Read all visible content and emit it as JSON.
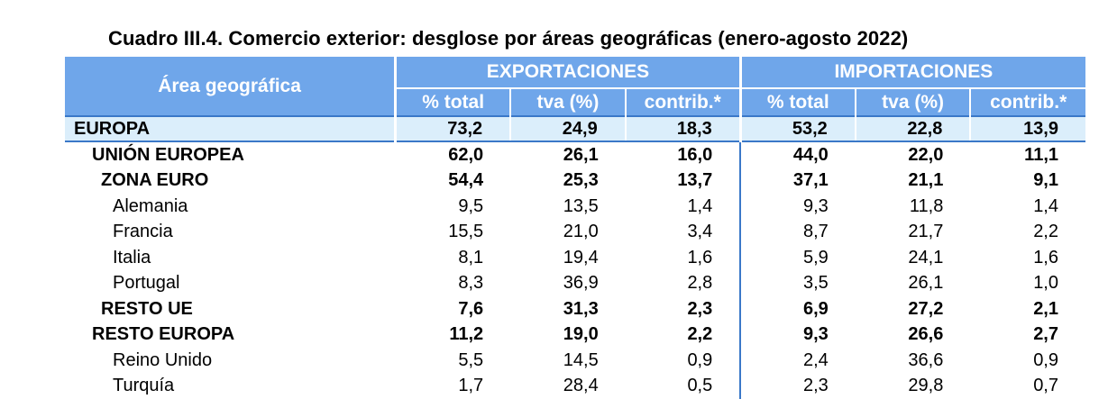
{
  "title": "Cuadro III.4. Comercio exterior: desglose por áreas geográficas (enero-agosto 2022)",
  "header": {
    "area": "Área geográfica",
    "exports": "EXPORTACIONES",
    "imports": "IMPORTACIONES",
    "sub": [
      "% total",
      "tva (%)",
      "contrib.*",
      "% total",
      "tva (%)",
      "contrib.*"
    ]
  },
  "rows": [
    {
      "label": "EUROPA",
      "values": [
        "73,2",
        "24,9",
        "18,3",
        "53,2",
        "22,8",
        "13,9"
      ]
    },
    {
      "label": "UNIÓN EUROPEA",
      "values": [
        "62,0",
        "26,1",
        "16,0",
        "44,0",
        "22,0",
        "11,1"
      ]
    },
    {
      "label": "ZONA EURO",
      "values": [
        "54,4",
        "25,3",
        "13,7",
        "37,1",
        "21,1",
        "9,1"
      ]
    },
    {
      "label": "Alemania",
      "values": [
        "9,5",
        "13,5",
        "1,4",
        "9,3",
        "11,8",
        "1,4"
      ]
    },
    {
      "label": "Francia",
      "values": [
        "15,5",
        "21,0",
        "3,4",
        "8,7",
        "21,7",
        "2,2"
      ]
    },
    {
      "label": "Italia",
      "values": [
        "8,1",
        "19,4",
        "1,6",
        "5,9",
        "24,1",
        "1,6"
      ]
    },
    {
      "label": "Portugal",
      "values": [
        "8,3",
        "36,9",
        "2,8",
        "3,5",
        "26,1",
        "1,0"
      ]
    },
    {
      "label": "RESTO UE",
      "values": [
        "7,6",
        "31,3",
        "2,3",
        "6,9",
        "27,2",
        "2,1"
      ]
    },
    {
      "label": "RESTO EUROPA",
      "values": [
        "11,2",
        "19,0",
        "2,2",
        "9,3",
        "26,6",
        "2,7"
      ]
    },
    {
      "label": "Reino Unido",
      "values": [
        "5,5",
        "14,5",
        "0,9",
        "2,4",
        "36,6",
        "0,9"
      ]
    },
    {
      "label": "Turquía",
      "values": [
        "1,7",
        "28,4",
        "0,5",
        "2,3",
        "29,8",
        "0,7"
      ]
    }
  ]
}
